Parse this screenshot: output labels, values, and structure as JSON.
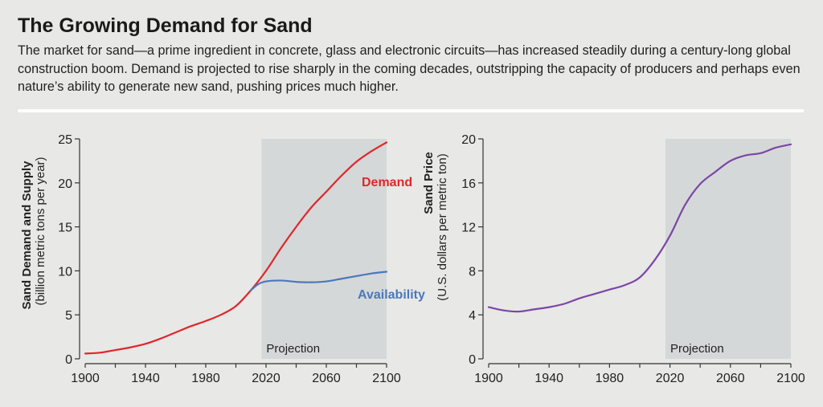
{
  "title": "The Growing Demand for Sand",
  "subtitle": "The market for sand—a prime ingredient in concrete, glass and electronic circuits—has increased steadily during a century-long global construction boom. Demand is projected to rise sharply in the coming decades, outstripping the capacity of producers and perhaps even nature’s ability to generate new sand, pushing prices much higher.",
  "chart_data": [
    {
      "type": "line",
      "ylabel": "Sand Demand and Supply",
      "ylabel_sub": "(billion metric tons per year)",
      "xlim": [
        1900,
        2100
      ],
      "ylim": [
        0,
        25
      ],
      "xticks": [
        "1900",
        "1940",
        "1980",
        "2020",
        "2060",
        "2100"
      ],
      "yticks": [
        "0",
        "5",
        "10",
        "15",
        "20",
        "25"
      ],
      "projection_start": 2017,
      "projection_label": "Projection",
      "series": [
        {
          "name": "Demand",
          "color": "#e0262b",
          "x": [
            1900,
            1910,
            1920,
            1930,
            1940,
            1950,
            1960,
            1970,
            1980,
            1990,
            2000,
            2010,
            2020,
            2030,
            2040,
            2050,
            2060,
            2070,
            2080,
            2090,
            2100
          ],
          "y": [
            0.6,
            0.7,
            1.0,
            1.3,
            1.7,
            2.3,
            3.0,
            3.7,
            4.3,
            5.0,
            6.0,
            7.8,
            10.0,
            12.6,
            15.0,
            17.2,
            19.0,
            20.8,
            22.4,
            23.6,
            24.6
          ]
        },
        {
          "name": "Availability",
          "color": "#4a78bd",
          "x": [
            2010,
            2015,
            2020,
            2030,
            2040,
            2050,
            2060,
            2070,
            2080,
            2090,
            2100
          ],
          "y": [
            7.8,
            8.5,
            8.8,
            8.9,
            8.75,
            8.7,
            8.8,
            9.1,
            9.4,
            9.7,
            9.9
          ]
        }
      ]
    },
    {
      "type": "line",
      "ylabel": "Sand Price",
      "ylabel_sub": "(U.S. dollars per metric ton)",
      "xlim": [
        1900,
        2100
      ],
      "ylim": [
        0,
        20
      ],
      "xticks": [
        "1900",
        "1940",
        "1980",
        "2020",
        "2060",
        "2100"
      ],
      "yticks": [
        "0",
        "4",
        "8",
        "12",
        "16",
        "20"
      ],
      "projection_start": 2017,
      "projection_label": "Projection",
      "series": [
        {
          "name": "Price",
          "color": "#7b47a6",
          "x": [
            1900,
            1910,
            1920,
            1930,
            1940,
            1950,
            1960,
            1970,
            1980,
            1990,
            2000,
            2010,
            2020,
            2030,
            2040,
            2050,
            2060,
            2070,
            2080,
            2090,
            2100
          ],
          "y": [
            4.7,
            4.4,
            4.3,
            4.5,
            4.7,
            5.0,
            5.5,
            5.9,
            6.3,
            6.7,
            7.4,
            9.0,
            11.2,
            14.0,
            15.9,
            17.0,
            18.0,
            18.5,
            18.7,
            19.2,
            19.5
          ]
        }
      ]
    }
  ],
  "colors": {
    "background": "#e8e8e7",
    "projection_shade": "#d5d8d8"
  }
}
